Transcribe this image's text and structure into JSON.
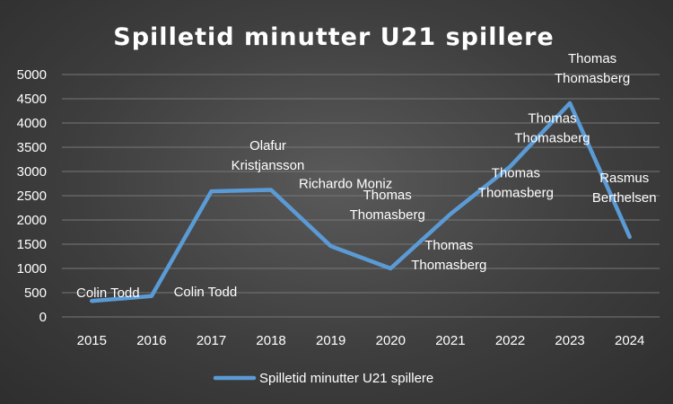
{
  "chart_data": {
    "type": "line",
    "title": "Spilletid minutter U21 spillere",
    "xlabel": "",
    "ylabel": "",
    "categories": [
      "2015",
      "2016",
      "2017",
      "2018",
      "2019",
      "2020",
      "2021",
      "2022",
      "2023",
      "2024"
    ],
    "series": [
      {
        "name": "Spilletid minutter U21 spillere",
        "values": [
          330,
          430,
          2590,
          2620,
          1460,
          1000,
          2120,
          3100,
          4410,
          1650
        ],
        "labels": [
          "Colin Todd",
          "Colin Todd",
          "Olafur Kristjansson",
          "Richardo Moniz",
          "Thomas Thomasberg",
          "Thomas Thomasberg",
          "Thomas Thomasberg",
          "Thomas Thomasberg",
          "Thomas Thomasberg",
          "Rasmus Berthelsen"
        ],
        "color": "#5b9bd5"
      }
    ],
    "ylim": [
      0,
      5000
    ],
    "yticks": [
      0,
      500,
      1000,
      1500,
      2000,
      2500,
      3000,
      3500,
      4000,
      4500,
      5000
    ],
    "grid": true,
    "legend": "bottom",
    "colors": {
      "line": "#5b9bd5",
      "grid": "#777777",
      "text": "#ffffff"
    }
  }
}
